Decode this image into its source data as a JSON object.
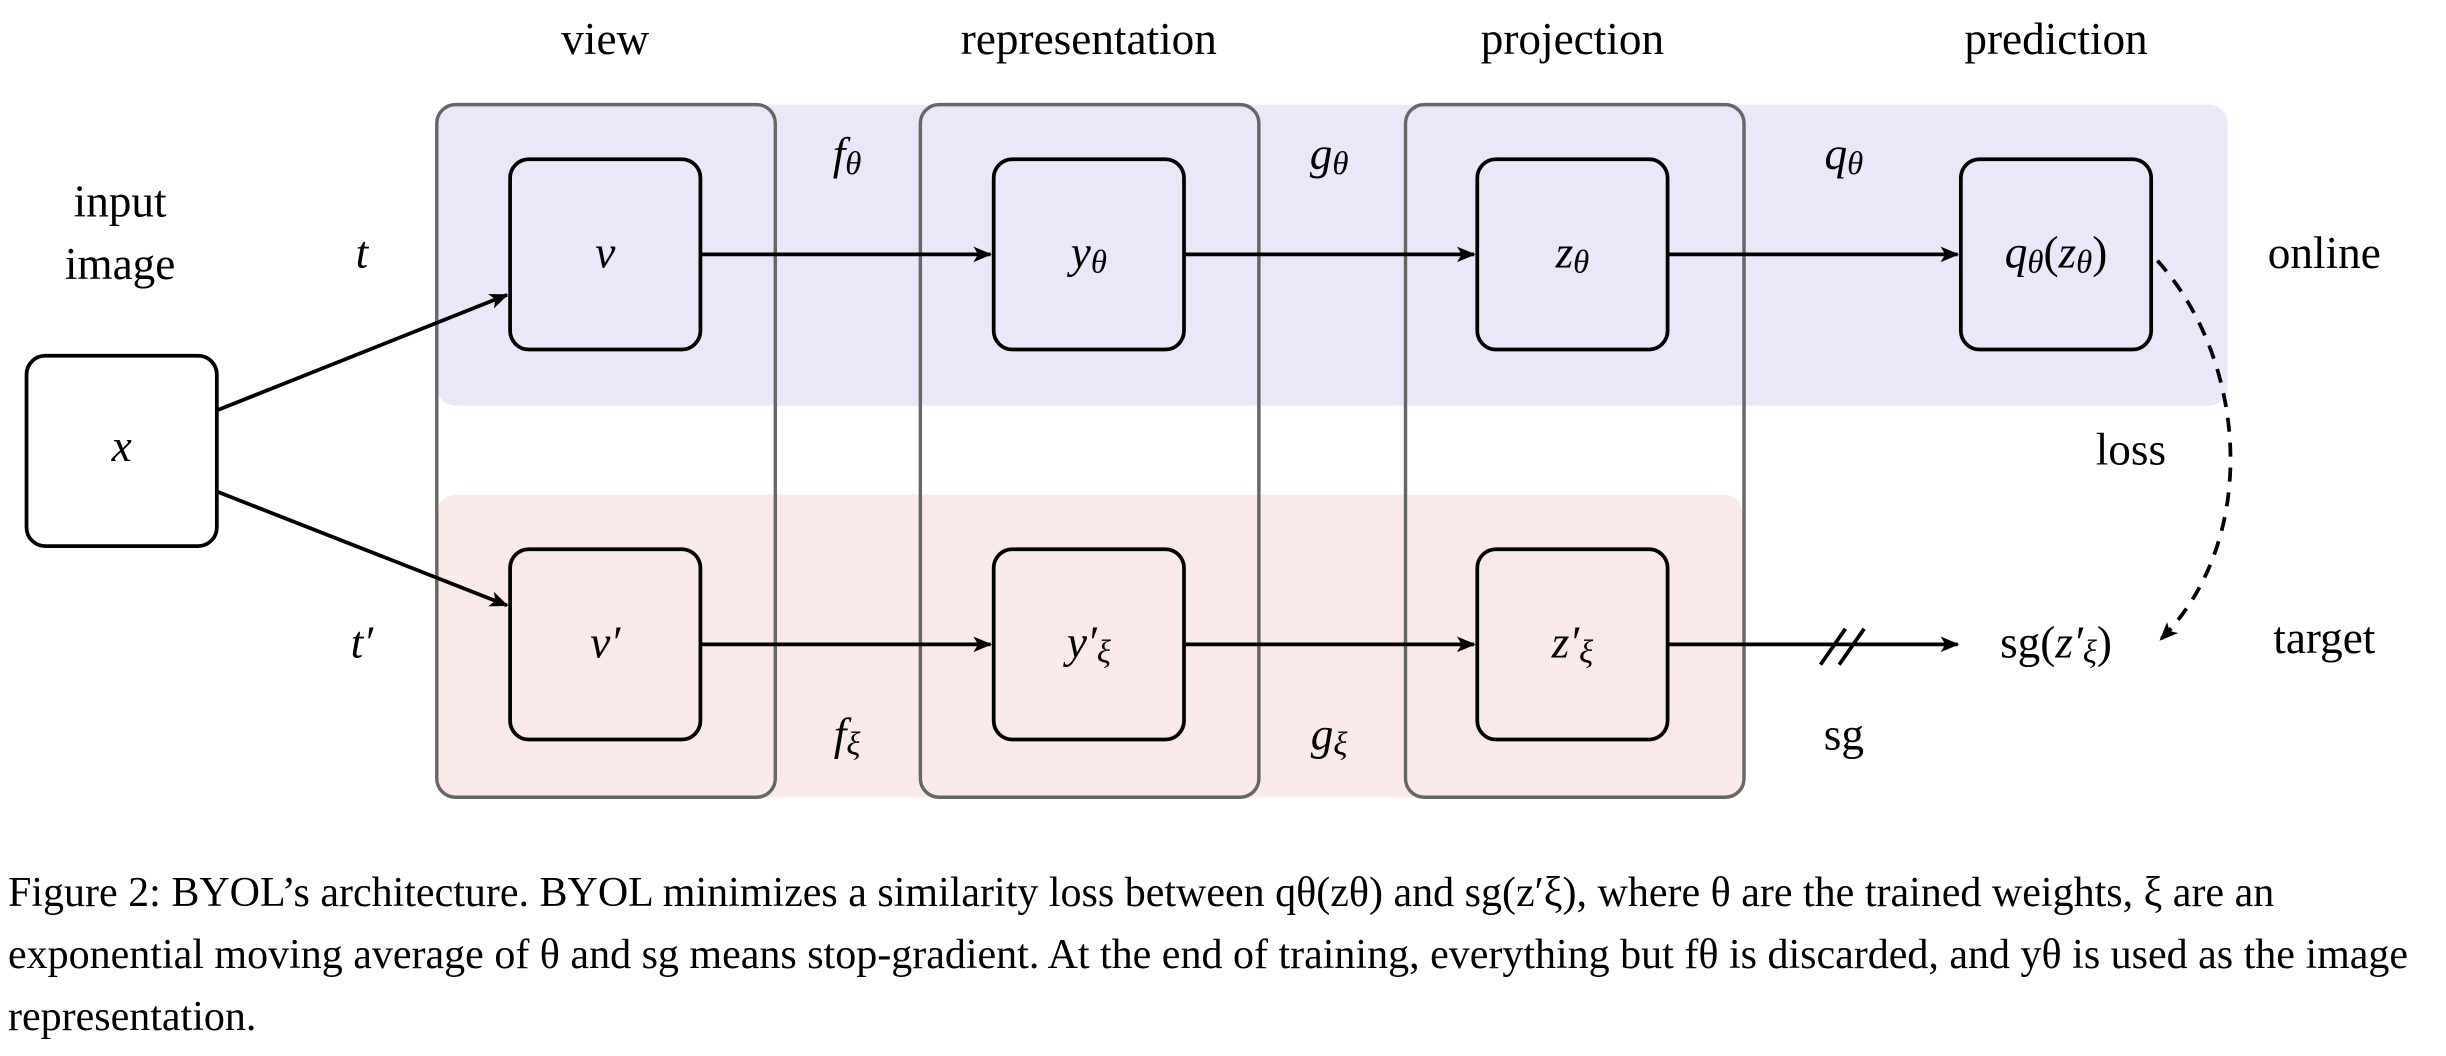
{
  "headers": [
    "view",
    "representation",
    "projection",
    "prediction"
  ],
  "input_label": [
    "input",
    "image"
  ],
  "row_labels": {
    "online": "online",
    "target": "target",
    "loss": "loss"
  },
  "input_node": [
    {
      "t": "x"
    }
  ],
  "online": {
    "transform": [
      {
        "t": "t"
      }
    ],
    "nodes": [
      [
        {
          "t": "v"
        }
      ],
      [
        {
          "t": "y"
        },
        {
          "t": "θ",
          "sub": true
        }
      ],
      [
        {
          "t": "z"
        },
        {
          "t": "θ",
          "sub": true
        }
      ],
      [
        {
          "t": "q"
        },
        {
          "t": "θ",
          "sub": true
        },
        {
          "t": "(",
          "upright": true
        },
        {
          "t": "z"
        },
        {
          "t": "θ",
          "sub": true
        },
        {
          "t": ")",
          "upright": true
        }
      ]
    ],
    "edges": [
      [
        {
          "t": "f"
        },
        {
          "t": "θ",
          "sub": true
        }
      ],
      [
        {
          "t": "g"
        },
        {
          "t": "θ",
          "sub": true
        }
      ],
      [
        {
          "t": "q"
        },
        {
          "t": "θ",
          "sub": true
        }
      ]
    ]
  },
  "target": {
    "transform": [
      {
        "t": "t′"
      }
    ],
    "nodes": [
      [
        {
          "t": "v′"
        }
      ],
      [
        {
          "t": "y′"
        },
        {
          "t": "ξ",
          "sub": true
        }
      ],
      [
        {
          "t": "z′"
        },
        {
          "t": "ξ",
          "sub": true
        }
      ],
      [
        {
          "t": "sg(",
          "upright": true
        },
        {
          "t": "z′"
        },
        {
          "t": "ξ",
          "sub": true
        },
        {
          "t": ")",
          "upright": true
        }
      ]
    ],
    "edges": [
      [
        {
          "t": "f"
        },
        {
          "t": "ξ",
          "sub": true
        }
      ],
      [
        {
          "t": "g"
        },
        {
          "t": "ξ",
          "sub": true
        }
      ],
      [
        {
          "t": "sg",
          "upright": true
        }
      ]
    ]
  },
  "caption": "Figure 2: BYOL’s architecture. BYOL minimizes a similarity loss between qθ(zθ) and sg(z′ξ), where θ are the trained weights, ξ are an exponential moving average of θ and sg means stop-gradient. At the end of training, everything but fθ is discarded, and yθ is used as the image representation."
}
